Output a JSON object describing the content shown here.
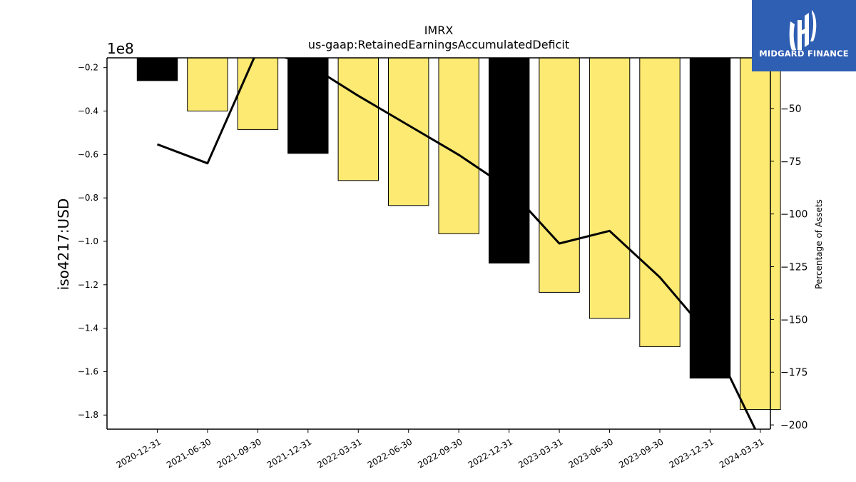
{
  "chart_data": {
    "type": "bar",
    "title": "IMRX",
    "subtitle": "us-gaap:RetainedEarningsAccumulatedDeficit",
    "ylabel": "iso4217:USD",
    "y_offset_label": "1e8",
    "y2label": "Percentage of Assets",
    "categories": [
      "2020-12-31",
      "2021-06-30",
      "2021-09-30",
      "2021-12-31",
      "2022-03-31",
      "2022-06-30",
      "2022-09-30",
      "2022-12-31",
      "2023-03-31",
      "2023-06-30",
      "2023-09-30",
      "2023-12-31",
      "2024-03-31"
    ],
    "series": [
      {
        "kind": "bar",
        "values": [
          -0.26,
          -0.4,
          -0.485,
          -0.595,
          -0.72,
          -0.835,
          -0.965,
          -1.1,
          -1.235,
          -1.355,
          -1.485,
          -1.63,
          -1.775
        ],
        "colors": [
          "#000000",
          "#fdea72",
          "#fdea72",
          "#000000",
          "#fdea72",
          "#fdea72",
          "#fdea72",
          "#000000",
          "#fdea72",
          "#fdea72",
          "#fdea72",
          "#000000",
          "#fdea72"
        ]
      },
      {
        "kind": "line",
        "axis": "right",
        "color": "#000000",
        "values": [
          -67,
          -76,
          -22,
          -29,
          -44,
          -58,
          -72,
          -88,
          -114,
          -108,
          -130,
          -158,
          -207
        ]
      }
    ],
    "ylim": [
      -1.865,
      -0.155
    ],
    "yticks": [
      -0.2,
      -0.4,
      -0.6,
      -0.8,
      -1.0,
      -1.2,
      -1.4,
      -1.6,
      -1.8
    ],
    "ytick_labels": [
      "−0.2",
      "−0.4",
      "−0.6",
      "−0.8",
      "−1.0",
      "−1.2",
      "−1.4",
      "−1.6",
      "−1.8"
    ],
    "y2lim": [
      -202,
      -26
    ],
    "y2ticks": [
      -50,
      -75,
      -100,
      -125,
      -150,
      -175,
      -200
    ],
    "y2tick_labels": [
      "−50",
      "−75",
      "−100",
      "−125",
      "−150",
      "−175",
      "−200"
    ],
    "grid": false
  },
  "logo": {
    "text": "MIDGARD FINANCE",
    "bg_color": "#2f5fb3"
  }
}
